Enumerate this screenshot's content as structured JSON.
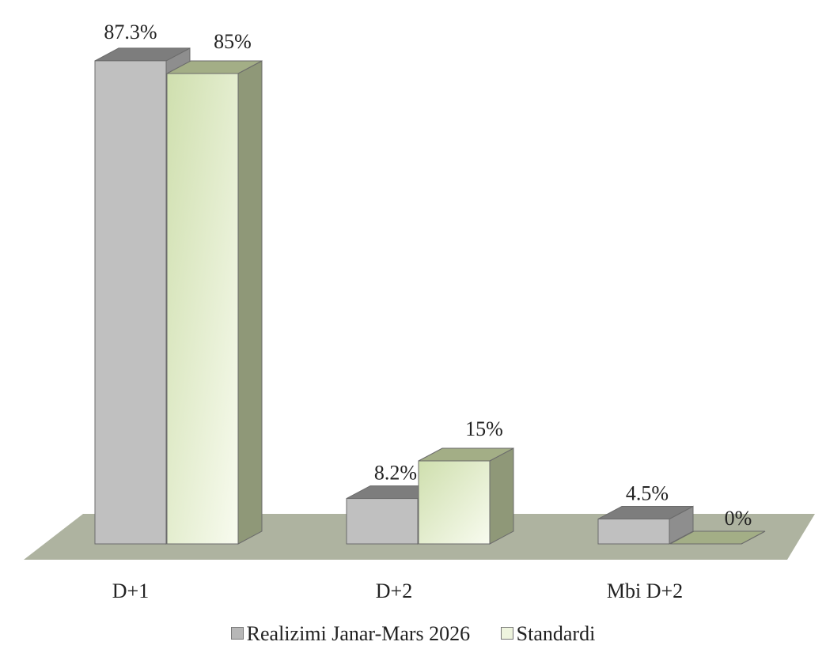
{
  "chart_data": {
    "type": "bar",
    "categories": [
      "D+1",
      "D+2",
      "Mbi D+2"
    ],
    "series": [
      {
        "name": "Realizimi Janar-Mars 2026",
        "values": [
          87.3,
          8.2,
          4.5
        ],
        "labels": [
          "87.3%",
          "8.2%",
          "4.5%"
        ]
      },
      {
        "name": "Standardi",
        "values": [
          85,
          15,
          0
        ],
        "labels": [
          "85%",
          "15%",
          "0%"
        ]
      }
    ],
    "ylim": [
      0,
      100
    ],
    "value_unit": "%",
    "grid": false,
    "legend_position": "bottom",
    "style": "3d-column"
  },
  "colors": {
    "series1_front": "#c0c0c0",
    "series1_top": "#7d7d7d",
    "series1_side": "#8e8e8e",
    "series2_front_light": "#f8fbef",
    "series2_front_dark": "#cfdfae",
    "series2_top": "#a3ae86",
    "series2_side": "#8f9878",
    "floor": "#aeb3a0",
    "edge": "#6b6b6b"
  },
  "legend": {
    "items": [
      {
        "label": "Realizimi Janar-Mars 2026",
        "icon": "square-swatch-gray"
      },
      {
        "label": "Standardi",
        "icon": "square-swatch-green"
      }
    ]
  }
}
